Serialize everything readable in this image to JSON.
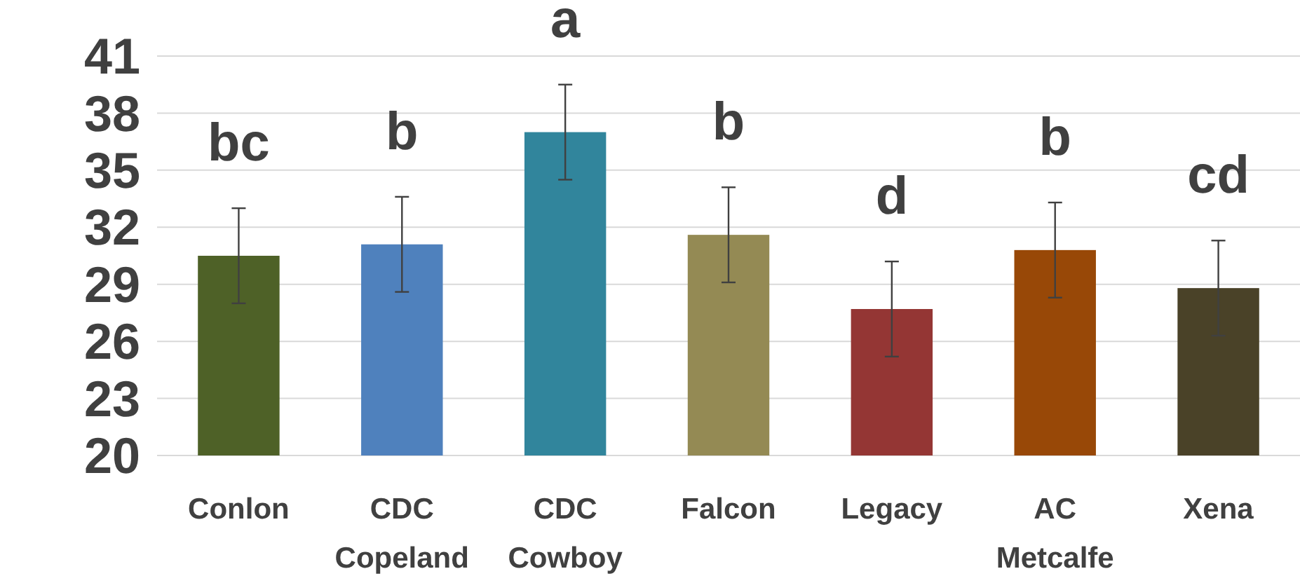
{
  "chart_data": {
    "type": "bar",
    "categories": [
      "Conlon",
      "CDC Copeland",
      "CDC Cowboy",
      "Falcon",
      "Legacy",
      "AC Metcalfe",
      "Xena"
    ],
    "values": [
      30.5,
      31.1,
      37.0,
      31.6,
      27.7,
      30.8,
      28.8
    ],
    "colors": [
      "#4e6127",
      "#4f81bd",
      "#31859c",
      "#948a54",
      "#943634",
      "#984807",
      "#4a4228"
    ],
    "errors": [
      2.5,
      2.5,
      2.5,
      2.5,
      2.5,
      2.5,
      2.5
    ],
    "ylim": [
      20,
      41
    ],
    "yticks": [
      20,
      23,
      26,
      29,
      32,
      35,
      38,
      41
    ],
    "grid": "y",
    "annotations": [
      {
        "text": "bc",
        "x": "Conlon",
        "y": 33.0
      },
      {
        "text": "b",
        "x": "CDC Copeland",
        "y": 33.6
      },
      {
        "text": "a",
        "x": "CDC Cowboy",
        "y": 39.5
      },
      {
        "text": "b",
        "x": "Falcon",
        "y": 34.1
      },
      {
        "text": "d",
        "x": "Legacy",
        "y": 30.2
      },
      {
        "text": "b",
        "x": "AC Metcalfe",
        "y": 33.3
      },
      {
        "text": "cd",
        "x": "Xena",
        "y": 31.3
      }
    ]
  }
}
